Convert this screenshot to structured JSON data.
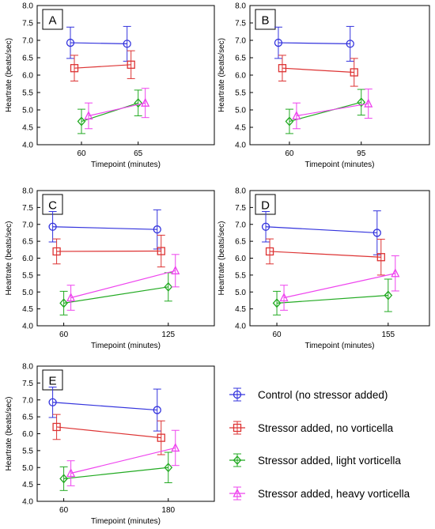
{
  "colors": {
    "control": "#3333dd",
    "no_vort": "#dd3333",
    "light": "#22aa22",
    "heavy": "#ee44ee"
  },
  "series_styles": [
    {
      "key": "control",
      "marker": "circle"
    },
    {
      "key": "no_vort",
      "marker": "square"
    },
    {
      "key": "light",
      "marker": "diamond"
    },
    {
      "key": "heavy",
      "marker": "triangle"
    }
  ],
  "legend": {
    "placement": "bottom-right",
    "entries": [
      "Control (no stressor added)",
      "Stressor added, no vorticella",
      "Stressor added, light vorticella",
      "Stressor added, heavy vorticella"
    ]
  },
  "chart_data": [
    {
      "type": "line",
      "panel_label": "A",
      "categories": [
        "60",
        "65"
      ],
      "xlabel": "Timepoint (minutes)",
      "ylabel": "Heartrate (beats/sec)",
      "ylim": [
        4.0,
        8.0
      ],
      "yticks": [
        "4.0",
        "4.5",
        "5.0",
        "5.5",
        "6.0",
        "6.5",
        "7.0",
        "7.5",
        "8.0"
      ],
      "series": [
        {
          "values": [
            6.93,
            6.9
          ],
          "err": [
            0.45,
            0.5
          ]
        },
        {
          "values": [
            6.2,
            6.3
          ],
          "err": [
            0.37,
            0.4
          ]
        },
        {
          "values": [
            4.67,
            5.2
          ],
          "err": [
            0.35,
            0.37
          ]
        },
        {
          "values": [
            4.83,
            5.2
          ],
          "err": [
            0.37,
            0.42
          ]
        }
      ]
    },
    {
      "type": "line",
      "panel_label": "B",
      "categories": [
        "60",
        "95"
      ],
      "xlabel": "Timepoint (minutes)",
      "ylabel": "Heartrate (beats/sec)",
      "ylim": [
        4.0,
        8.0
      ],
      "yticks": [
        "4.0",
        "4.5",
        "5.0",
        "5.5",
        "6.0",
        "6.5",
        "7.0",
        "7.5",
        "8.0"
      ],
      "series": [
        {
          "values": [
            6.93,
            6.9
          ],
          "err": [
            0.45,
            0.5
          ]
        },
        {
          "values": [
            6.2,
            6.08
          ],
          "err": [
            0.37,
            0.4
          ]
        },
        {
          "values": [
            4.67,
            5.22
          ],
          "err": [
            0.35,
            0.37
          ]
        },
        {
          "values": [
            4.83,
            5.18
          ],
          "err": [
            0.37,
            0.42
          ]
        }
      ]
    },
    {
      "type": "line",
      "panel_label": "C",
      "categories": [
        "60",
        "125"
      ],
      "xlabel": "Timepoint (minutes)",
      "ylabel": "Heartrate (beats/sec)",
      "ylim": [
        4.0,
        8.0
      ],
      "yticks": [
        "4.0",
        "4.5",
        "5.0",
        "5.5",
        "6.0",
        "6.5",
        "7.0",
        "7.5",
        "8.0"
      ],
      "series": [
        {
          "values": [
            6.93,
            6.85
          ],
          "err": [
            0.45,
            0.58
          ]
        },
        {
          "values": [
            6.2,
            6.21
          ],
          "err": [
            0.37,
            0.47
          ]
        },
        {
          "values": [
            4.67,
            5.15
          ],
          "err": [
            0.35,
            0.42
          ]
        },
        {
          "values": [
            4.83,
            5.63
          ],
          "err": [
            0.37,
            0.48
          ]
        }
      ]
    },
    {
      "type": "line",
      "panel_label": "D",
      "categories": [
        "60",
        "155"
      ],
      "xlabel": "Timepoint (minutes)",
      "ylabel": "Heartrate (beats/sec)",
      "ylim": [
        4.0,
        8.0
      ],
      "yticks": [
        "4.0",
        "4.5",
        "5.0",
        "5.5",
        "6.0",
        "6.5",
        "7.0",
        "7.5",
        "8.0"
      ],
      "series": [
        {
          "values": [
            6.93,
            6.75
          ],
          "err": [
            0.45,
            0.65
          ]
        },
        {
          "values": [
            6.2,
            6.03
          ],
          "err": [
            0.37,
            0.53
          ]
        },
        {
          "values": [
            4.67,
            4.9
          ],
          "err": [
            0.35,
            0.48
          ]
        },
        {
          "values": [
            4.83,
            5.55
          ],
          "err": [
            0.37,
            0.52
          ]
        }
      ]
    },
    {
      "type": "line",
      "panel_label": "E",
      "categories": [
        "60",
        "180"
      ],
      "xlabel": "Timepoint (minutes)",
      "ylabel": "Heartrate (beats/sec)",
      "ylim": [
        4.0,
        8.0
      ],
      "yticks": [
        "4.0",
        "4.5",
        "5.0",
        "5.5",
        "6.0",
        "6.5",
        "7.0",
        "7.5",
        "8.0"
      ],
      "series": [
        {
          "values": [
            6.93,
            6.7
          ],
          "err": [
            0.45,
            0.62
          ]
        },
        {
          "values": [
            6.2,
            5.88
          ],
          "err": [
            0.37,
            0.5
          ]
        },
        {
          "values": [
            4.67,
            5.0
          ],
          "err": [
            0.35,
            0.45
          ]
        },
        {
          "values": [
            4.83,
            5.58
          ],
          "err": [
            0.37,
            0.52
          ]
        }
      ]
    }
  ]
}
